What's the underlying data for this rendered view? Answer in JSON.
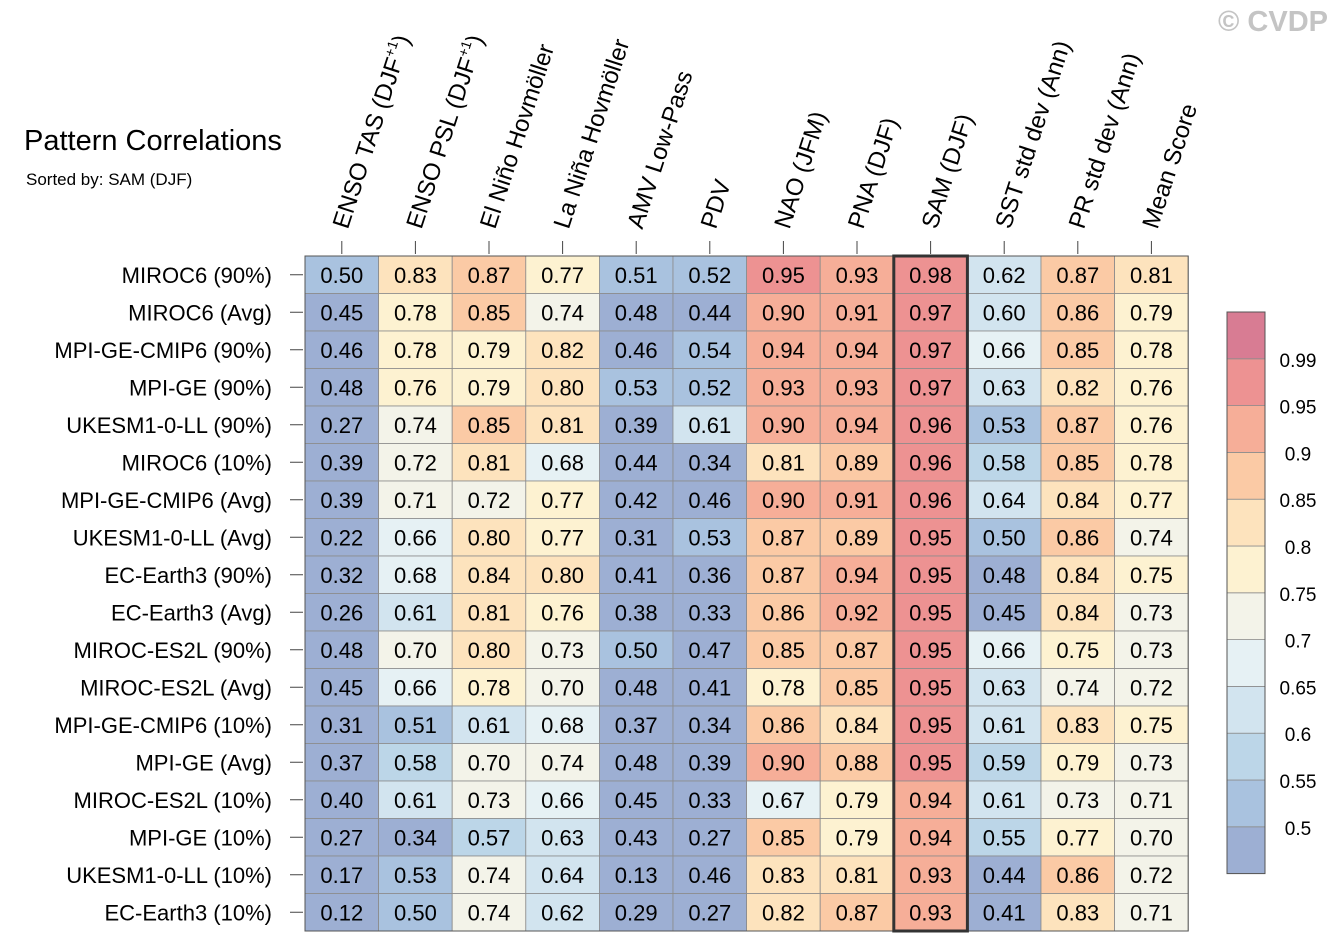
{
  "header": {
    "title": "Pattern Correlations",
    "subtitle": "Sorted by: SAM (DJF)",
    "copyright": "© CVDP"
  },
  "chart_data": {
    "type": "heatmap",
    "title": "Pattern Correlations",
    "subtitle": "Sorted by: SAM (DJF)",
    "sorted_by": "SAM (DJF)",
    "highlighted_column": "SAM (DJF)",
    "columns": [
      {
        "label": "ENSO TAS (DJF",
        "sup": "+1",
        "suffix": ")"
      },
      {
        "label": "ENSO PSL (DJF",
        "sup": "+1",
        "suffix": ")"
      },
      {
        "label": "El Niño Hovmöller"
      },
      {
        "label": "La Niña Hovmöller"
      },
      {
        "label": "AMV Low-Pass"
      },
      {
        "label": "PDV"
      },
      {
        "label": "NAO (JFM)"
      },
      {
        "label": "PNA (DJF)"
      },
      {
        "label": "SAM (DJF)"
      },
      {
        "label": "SST std dev (Ann)"
      },
      {
        "label": "PR std dev (Ann)"
      },
      {
        "label": "Mean Score"
      }
    ],
    "rows": [
      "MIROC6 (90%)",
      "MIROC6 (Avg)",
      "MPI-GE-CMIP6 (90%)",
      "MPI-GE (90%)",
      "UKESM1-0-LL (90%)",
      "MIROC6 (10%)",
      "MPI-GE-CMIP6 (Avg)",
      "UKESM1-0-LL (Avg)",
      "EC-Earth3 (90%)",
      "EC-Earth3 (Avg)",
      "MIROC-ES2L (90%)",
      "MIROC-ES2L (Avg)",
      "MPI-GE-CMIP6 (10%)",
      "MPI-GE (Avg)",
      "MIROC-ES2L (10%)",
      "MPI-GE (10%)",
      "UKESM1-0-LL (10%)",
      "EC-Earth3 (10%)"
    ],
    "values": [
      [
        0.5,
        0.83,
        0.87,
        0.77,
        0.51,
        0.52,
        0.95,
        0.93,
        0.98,
        0.62,
        0.87,
        0.81
      ],
      [
        0.45,
        0.78,
        0.85,
        0.74,
        0.48,
        0.44,
        0.9,
        0.91,
        0.97,
        0.6,
        0.86,
        0.79
      ],
      [
        0.46,
        0.78,
        0.79,
        0.82,
        0.46,
        0.54,
        0.94,
        0.94,
        0.97,
        0.66,
        0.85,
        0.78
      ],
      [
        0.48,
        0.76,
        0.79,
        0.8,
        0.53,
        0.52,
        0.93,
        0.93,
        0.97,
        0.63,
        0.82,
        0.76
      ],
      [
        0.27,
        0.74,
        0.85,
        0.81,
        0.39,
        0.61,
        0.9,
        0.94,
        0.96,
        0.53,
        0.87,
        0.76
      ],
      [
        0.39,
        0.72,
        0.81,
        0.68,
        0.44,
        0.34,
        0.81,
        0.89,
        0.96,
        0.58,
        0.85,
        0.78
      ],
      [
        0.39,
        0.71,
        0.72,
        0.77,
        0.42,
        0.46,
        0.9,
        0.91,
        0.96,
        0.64,
        0.84,
        0.77
      ],
      [
        0.22,
        0.66,
        0.8,
        0.77,
        0.31,
        0.53,
        0.87,
        0.89,
        0.95,
        0.5,
        0.86,
        0.74
      ],
      [
        0.32,
        0.68,
        0.84,
        0.8,
        0.41,
        0.36,
        0.87,
        0.94,
        0.95,
        0.48,
        0.84,
        0.75
      ],
      [
        0.26,
        0.61,
        0.81,
        0.76,
        0.38,
        0.33,
        0.86,
        0.92,
        0.95,
        0.45,
        0.84,
        0.73
      ],
      [
        0.48,
        0.7,
        0.8,
        0.73,
        0.5,
        0.47,
        0.85,
        0.87,
        0.95,
        0.66,
        0.75,
        0.73
      ],
      [
        0.45,
        0.66,
        0.78,
        0.7,
        0.48,
        0.41,
        0.78,
        0.85,
        0.95,
        0.63,
        0.74,
        0.72
      ],
      [
        0.31,
        0.51,
        0.61,
        0.68,
        0.37,
        0.34,
        0.86,
        0.84,
        0.95,
        0.61,
        0.83,
        0.75
      ],
      [
        0.37,
        0.58,
        0.7,
        0.74,
        0.48,
        0.39,
        0.9,
        0.88,
        0.95,
        0.59,
        0.79,
        0.73
      ],
      [
        0.4,
        0.61,
        0.73,
        0.66,
        0.45,
        0.33,
        0.67,
        0.79,
        0.94,
        0.61,
        0.73,
        0.71
      ],
      [
        0.27,
        0.34,
        0.57,
        0.63,
        0.43,
        0.27,
        0.85,
        0.79,
        0.94,
        0.55,
        0.77,
        0.7
      ],
      [
        0.17,
        0.53,
        0.74,
        0.64,
        0.13,
        0.46,
        0.83,
        0.81,
        0.93,
        0.44,
        0.86,
        0.72
      ],
      [
        0.12,
        0.5,
        0.74,
        0.62,
        0.29,
        0.27,
        0.82,
        0.87,
        0.93,
        0.41,
        0.83,
        0.71
      ]
    ],
    "colorbar": {
      "levels": [
        0.5,
        0.55,
        0.6,
        0.65,
        0.7,
        0.75,
        0.8,
        0.85,
        0.9,
        0.95,
        0.99
      ],
      "tick_labels": [
        "0.5",
        "0.55",
        "0.6",
        "0.65",
        "0.7",
        "0.75",
        "0.8",
        "0.85",
        "0.9",
        "0.95",
        "0.99"
      ],
      "colors": [
        "#9dafd3",
        "#a9c2df",
        "#bcd6e8",
        "#d2e4ef",
        "#e6f1f4",
        "#f3f3e9",
        "#fdf2d1",
        "#fde3bd",
        "#fbcaa5",
        "#f6ae98",
        "#ed9292",
        "#d87c93"
      ]
    }
  }
}
